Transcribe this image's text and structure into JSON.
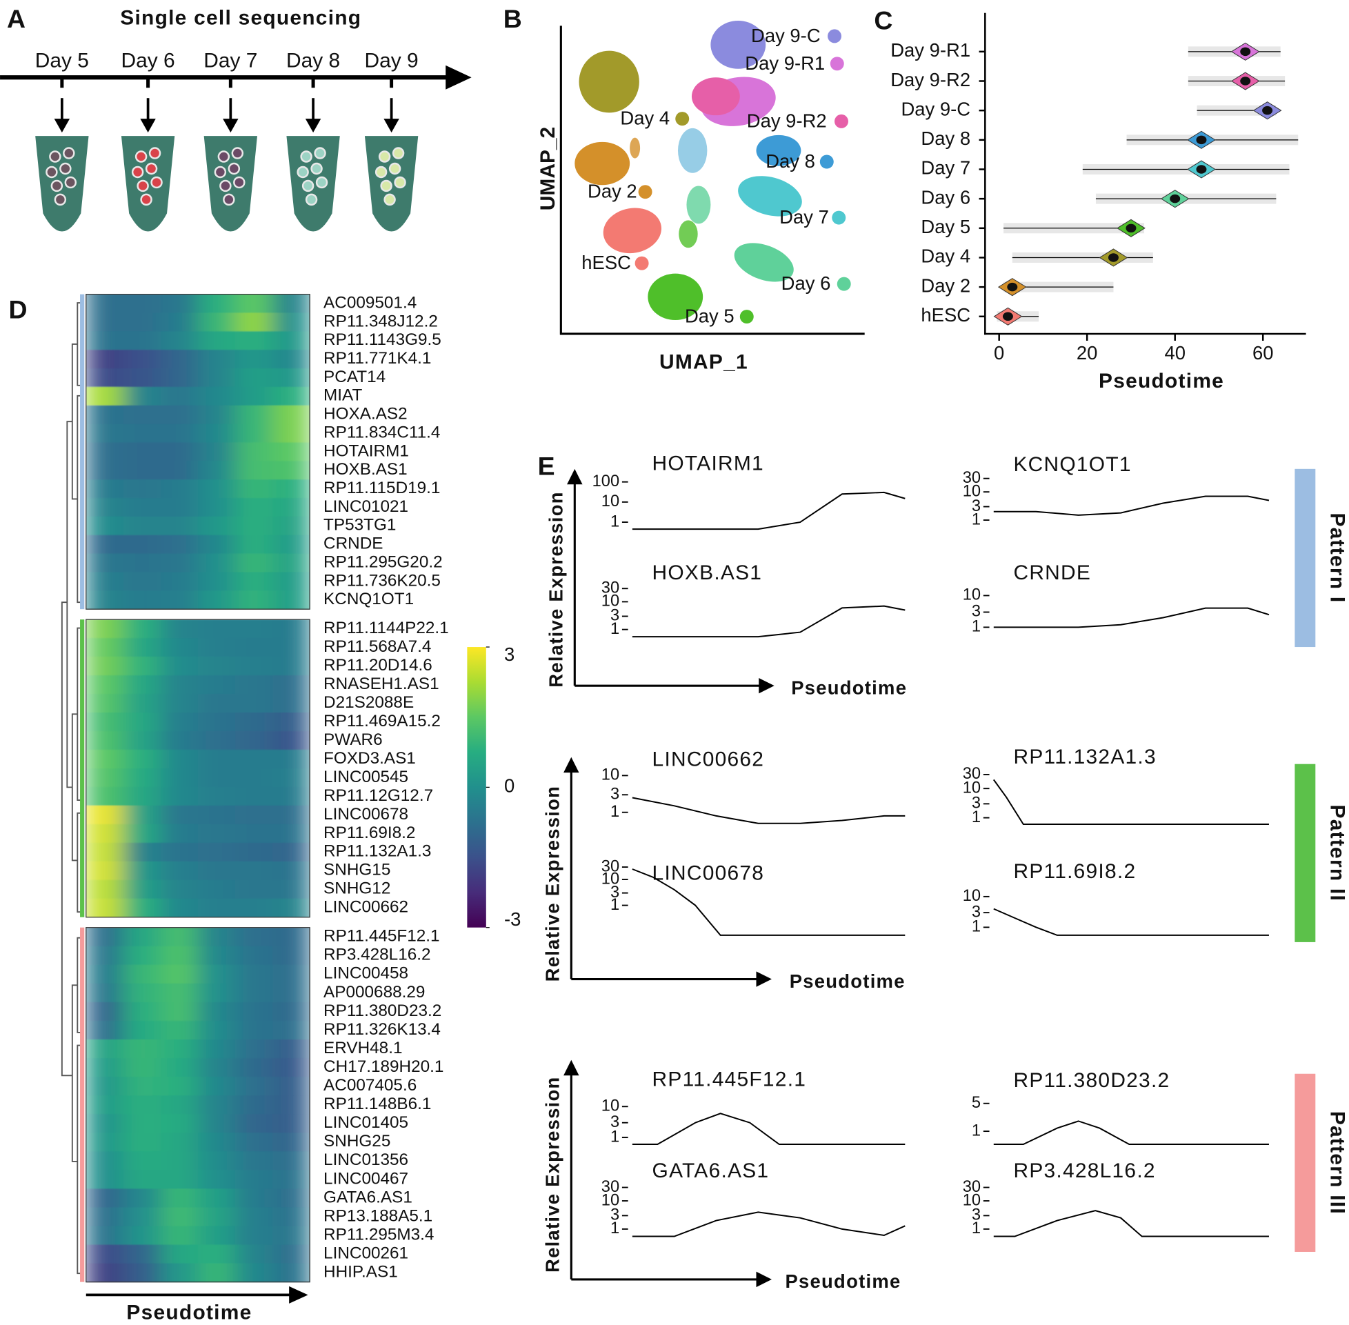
{
  "letters": [
    "A",
    "B",
    "C",
    "D",
    "E"
  ],
  "panel_a": {
    "title": "Single cell sequencing",
    "days": [
      "Day 5",
      "Day 6",
      "Day 7",
      "Day 8",
      "Day 9"
    ]
  },
  "panel_b": {
    "x_label": "UMAP_1",
    "y_label": "UMAP_2",
    "clusters": [
      {
        "label": "Day 9-C",
        "color": "#8b8bde"
      },
      {
        "label": "Day 9-R1",
        "color": "#d874d9"
      },
      {
        "label": "Day 4",
        "color": "#a29a2a"
      },
      {
        "label": "Day 9-R2",
        "color": "#e65fa8"
      },
      {
        "label": "Day 8",
        "color": "#3d9bd6"
      },
      {
        "label": "Day 2",
        "color": "#d4902a"
      },
      {
        "label": "Day 7",
        "color": "#4fc8cf"
      },
      {
        "label": "hESC",
        "color": "#f37a72"
      },
      {
        "label": "Day 6",
        "color": "#5fd19a"
      },
      {
        "label": "Day 5",
        "color": "#4fbf2a"
      }
    ]
  },
  "panel_e": {
    "groups": [
      {
        "y_label": "Relative Expression",
        "x_label": "Pseudotime",
        "pattern": "Pattern I",
        "color": "#9cbde2"
      },
      {
        "y_label": "Relative Expression",
        "x_label": "Pseudotime",
        "pattern": "Pattern II",
        "color": "#5cc14a"
      },
      {
        "y_label": "Relative Expression",
        "x_label": "Pseudotime",
        "pattern": "Pattern III",
        "color": "#f59b9b"
      }
    ]
  },
  "chart_data": [
    {
      "type": "violin",
      "x_label": "Pseudotime",
      "categories": [
        "Day 9-R1",
        "Day 9-R2",
        "Day 9-C",
        "Day 8",
        "Day 7",
        "Day 6",
        "Day 5",
        "Day 4",
        "Day 2",
        "hESC"
      ],
      "colors": [
        "#d874d9",
        "#e65fa8",
        "#8b8bde",
        "#3d9bd6",
        "#4fc8cf",
        "#5fd19a",
        "#4fbf2a",
        "#a29a2a",
        "#d4902a",
        "#f37a72"
      ],
      "min": [
        43,
        43,
        45,
        29,
        19,
        22,
        1,
        3,
        1,
        -0.5
      ],
      "median": [
        56,
        56,
        61,
        46,
        46,
        40,
        30,
        26,
        3,
        2
      ],
      "max": [
        64,
        65,
        63,
        68,
        66,
        63,
        33,
        35,
        26,
        9
      ],
      "xlim": [
        -3,
        69
      ],
      "xticks": [
        0,
        20,
        40,
        60
      ]
    },
    {
      "type": "heatmap",
      "x_label": "Pseudotime",
      "clim": [
        -3,
        3
      ],
      "cticks": [
        3,
        0,
        -3
      ],
      "groups": [
        {
          "color": "#9cbde2",
          "rows": [
            "AC009501.4",
            "RP11.348J12.2",
            "RP11.1143G9.5",
            "RP11.771K4.1",
            "PCAT14",
            "MIAT",
            "HOXA.AS2",
            "RP11.834C11.4",
            "HOTAIRM1",
            "HOXB.AS1",
            "RP11.115D19.1",
            "LINC01021",
            "TP53TG1",
            "CRNDE",
            "RP11.295G20.2",
            "RP11.736K20.5",
            "KCNQ1OT1"
          ],
          "values": [
            [
              -0.8,
              -0.8,
              -0.6,
              0.8,
              1.5,
              -0.3
            ],
            [
              -0.8,
              -0.8,
              -0.5,
              1,
              2,
              0
            ],
            [
              -0.7,
              -0.7,
              -0.3,
              0.6,
              0.8,
              0.2
            ],
            [
              -1.8,
              -1.5,
              -1,
              -0.3,
              0.2,
              -0.2
            ],
            [
              -1.6,
              -1.4,
              -1,
              -0.3,
              0.4,
              0.2
            ],
            [
              2.2,
              -0.3,
              -0.6,
              -0.2,
              0.3,
              0.8
            ],
            [
              -0.7,
              -0.8,
              -0.8,
              -0.3,
              1,
              1.8
            ],
            [
              -0.6,
              -0.7,
              -0.7,
              -0.2,
              1,
              1.8
            ],
            [
              -0.8,
              -0.9,
              -0.9,
              -0.3,
              1.2,
              1.5
            ],
            [
              -0.8,
              -0.9,
              -0.9,
              -0.2,
              1.2,
              1.3
            ],
            [
              -0.5,
              -0.6,
              -0.5,
              0,
              1,
              0.8
            ],
            [
              -0.3,
              -0.5,
              -0.5,
              0,
              0.8,
              0.6
            ],
            [
              -0.1,
              -0.3,
              -0.3,
              0.2,
              0.8,
              0.5
            ],
            [
              -0.9,
              -0.9,
              -0.8,
              -0.2,
              0.8,
              0.3
            ],
            [
              -0.6,
              -0.7,
              -0.6,
              0,
              1,
              0.5
            ],
            [
              -0.4,
              -0.6,
              -0.5,
              0,
              0.8,
              0.3
            ],
            [
              -0.3,
              -0.5,
              -0.4,
              0.2,
              0.9,
              0.4
            ]
          ]
        },
        {
          "color": "#5cc14a",
          "rows": [
            "RP11.1144P22.1",
            "RP11.568A7.4",
            "RP11.20D14.6",
            "RNASEH1.AS1",
            "D21S2088E",
            "RP11.469A15.2",
            "PWAR6",
            "FOXD3.AS1",
            "LINC00545",
            "RP11.12G12.7",
            "LINC00678",
            "RP11.69I8.2",
            "RP11.132A1.3",
            "SNHG15",
            "SNHG12",
            "LINC00662"
          ],
          "values": [
            [
              1.8,
              0.8,
              -0.3,
              -0.4,
              -0.4,
              -0.5
            ],
            [
              1.6,
              0.6,
              -0.2,
              -0.4,
              -0.5,
              -0.5
            ],
            [
              1.7,
              0.9,
              -0.1,
              -0.3,
              -0.4,
              -0.5
            ],
            [
              1.5,
              0.6,
              -0.3,
              -0.5,
              -0.6,
              -0.8
            ],
            [
              1.4,
              0.5,
              -0.3,
              -0.6,
              -0.6,
              -0.8
            ],
            [
              1.2,
              0.6,
              -0.4,
              -0.7,
              -0.9,
              -1.2
            ],
            [
              1.3,
              0.5,
              -0.5,
              -0.8,
              -1,
              -1.4
            ],
            [
              1.5,
              0.8,
              -0.2,
              -0.5,
              -0.5,
              -0.5
            ],
            [
              1.4,
              0.7,
              -0.2,
              -0.5,
              -0.5,
              -0.4
            ],
            [
              1.3,
              0.6,
              -0.2,
              -0.4,
              -0.5,
              -0.5
            ],
            [
              2.8,
              0.5,
              -0.6,
              -0.7,
              -0.8,
              -0.8
            ],
            [
              2.6,
              0.6,
              -0.5,
              -0.6,
              -0.7,
              -0.7
            ],
            [
              2.5,
              -0.3,
              -0.7,
              -0.8,
              -0.9,
              -1
            ],
            [
              2.6,
              0.2,
              -0.4,
              -0.6,
              -0.6,
              -0.7
            ],
            [
              2.4,
              0.4,
              -0.3,
              -0.5,
              -0.6,
              -0.6
            ],
            [
              2.5,
              0.8,
              -0.2,
              -0.4,
              -0.4,
              -0.3
            ]
          ]
        },
        {
          "color": "#f59b9b",
          "rows": [
            "RP11.445F12.1",
            "RP3.428L16.2",
            "LINC00458",
            "AP000688.29",
            "RP11.380D23.2",
            "RP11.326K13.4",
            "ERVH48.1",
            "CH17.189H20.1",
            "AC007405.6",
            "RP11.148B6.1",
            "LINC01405",
            "SNHG25",
            "LINC01356",
            "LINC00467",
            "GATA6.AS1",
            "RP13.188A5.1",
            "RP11.295M3.4",
            "LINC00261",
            "HHIP.AS1"
          ],
          "values": [
            [
              -0.8,
              0.6,
              1.2,
              -0.3,
              -0.8,
              -0.9
            ],
            [
              -0.6,
              0.8,
              1.3,
              -0.2,
              -0.7,
              -0.9
            ],
            [
              -0.5,
              1,
              1.4,
              0,
              -0.6,
              -0.8
            ],
            [
              -0.6,
              0.9,
              1.2,
              0,
              -0.6,
              -0.8
            ],
            [
              -1,
              0.8,
              1.2,
              -0.2,
              -0.7,
              -0.9
            ],
            [
              -0.8,
              0.7,
              1,
              -0.1,
              -0.7,
              -0.8
            ],
            [
              0.5,
              1,
              0.8,
              -0.2,
              -0.8,
              -1.2
            ],
            [
              0.3,
              1,
              0.7,
              -0.3,
              -0.9,
              -1.3
            ],
            [
              0.2,
              0.9,
              0.8,
              -0.2,
              -0.8,
              -1.2
            ],
            [
              0.3,
              0.8,
              0.6,
              -0.3,
              -0.9,
              -1.2
            ],
            [
              0.1,
              0.8,
              0.7,
              -0.3,
              -1,
              -1.2
            ],
            [
              0.2,
              0.8,
              0.6,
              -0.2,
              -0.8,
              -1
            ],
            [
              0,
              0.7,
              0.6,
              -0.1,
              -0.6,
              -0.8
            ],
            [
              0,
              0.6,
              0.6,
              0,
              -0.5,
              -0.7
            ],
            [
              -1,
              -0.2,
              1,
              0.4,
              -0.5,
              -0.8
            ],
            [
              -0.8,
              0,
              1.1,
              0.5,
              -0.4,
              -0.7
            ],
            [
              -0.7,
              0.1,
              1,
              0.4,
              -0.4,
              -0.6
            ],
            [
              -1.6,
              -1,
              0.6,
              0.8,
              -0.3,
              -0.8
            ],
            [
              -1.8,
              -1.2,
              0.2,
              1,
              -0.2,
              -0.7
            ]
          ]
        }
      ]
    },
    {
      "type": "line",
      "title": "HOTAIRM1",
      "x": [
        0,
        10,
        20,
        30,
        40,
        50,
        60,
        65
      ],
      "values": [
        0.45,
        0.45,
        0.45,
        0.45,
        1,
        25,
        30,
        15
      ],
      "xlim": [
        0,
        65
      ],
      "ylim": [
        0.45,
        150
      ],
      "yticks": [
        1,
        10,
        100
      ],
      "log": true,
      "color": "#000000"
    },
    {
      "type": "line",
      "title": "KCNQ1OT1",
      "x": [
        0,
        10,
        20,
        30,
        40,
        50,
        60,
        65
      ],
      "values": [
        2,
        2,
        1.5,
        1.8,
        4,
        7,
        7,
        5
      ],
      "xlim": [
        0,
        65
      ],
      "ylim": [
        0.55,
        40
      ],
      "yticks": [
        1,
        3,
        10,
        30
      ],
      "log": true,
      "color": "#000000"
    },
    {
      "type": "line",
      "title": "HOXB.AS1",
      "x": [
        0,
        10,
        20,
        30,
        40,
        50,
        60,
        65
      ],
      "values": [
        0.55,
        0.55,
        0.55,
        0.55,
        0.8,
        6,
        7,
        5
      ],
      "xlim": [
        0,
        65
      ],
      "ylim": [
        0.55,
        40
      ],
      "yticks": [
        1,
        3,
        10,
        30
      ],
      "log": true,
      "color": "#000000"
    },
    {
      "type": "line",
      "title": "CRNDE",
      "x": [
        0,
        10,
        20,
        30,
        40,
        50,
        60,
        65
      ],
      "values": [
        1,
        1,
        1,
        1.2,
        2,
        4,
        4,
        2.5
      ],
      "xlim": [
        0,
        65
      ],
      "ylim": [
        0.57,
        13
      ],
      "yticks": [
        1,
        3,
        10
      ],
      "log": true,
      "color": "#000000"
    },
    {
      "type": "line",
      "title": "LINC00662",
      "x": [
        0,
        10,
        20,
        30,
        40,
        50,
        60,
        65
      ],
      "values": [
        2.5,
        1.5,
        0.8,
        0.5,
        0.5,
        0.6,
        0.8,
        0.8
      ],
      "xlim": [
        0,
        65
      ],
      "ylim": [
        0.5,
        12
      ],
      "yticks": [
        1,
        3,
        10
      ],
      "log": true,
      "color": "#000000"
    },
    {
      "type": "line",
      "title": "RP11.132A1.3",
      "x": [
        0,
        3,
        7,
        65
      ],
      "values": [
        20,
        5,
        0.6,
        0.6
      ],
      "xlim": [
        0,
        65
      ],
      "ylim": [
        0.6,
        40
      ],
      "yticks": [
        1,
        3,
        10,
        30
      ],
      "log": true,
      "color": "#000000"
    },
    {
      "type": "line",
      "title": "LINC00678",
      "x": [
        0,
        5,
        10,
        15,
        21,
        65
      ],
      "values": [
        25,
        12,
        4,
        1,
        0.07,
        0.07
      ],
      "xlim": [
        0,
        65
      ],
      "ylim": [
        0.07,
        40
      ],
      "yticks": [
        1,
        3,
        10,
        30
      ],
      "log": true,
      "color": "#000000"
    },
    {
      "type": "line",
      "title": "RP11.69I8.2",
      "x": [
        0,
        5,
        10,
        15,
        65
      ],
      "values": [
        4,
        2,
        1,
        0.55,
        0.55
      ],
      "xlim": [
        0,
        65
      ],
      "ylim": [
        0.55,
        13
      ],
      "yticks": [
        1,
        3,
        10
      ],
      "log": true,
      "color": "#000000"
    },
    {
      "type": "line",
      "title": "RP11.445F12.1",
      "x": [
        0,
        6,
        15,
        21,
        28,
        35,
        65
      ],
      "values": [
        0.6,
        0.6,
        3,
        6,
        3,
        0.6,
        0.6
      ],
      "xlim": [
        0,
        65
      ],
      "ylim": [
        0.6,
        13
      ],
      "yticks": [
        1,
        3,
        10
      ],
      "log": true,
      "color": "#000000"
    },
    {
      "type": "line",
      "title": "RP11.380D23.2",
      "x": [
        0,
        7,
        15,
        20,
        25,
        32,
        65
      ],
      "values": [
        0.47,
        0.47,
        1.2,
        1.8,
        1.2,
        0.47,
        0.47
      ],
      "xlim": [
        0,
        65
      ],
      "ylim": [
        0.47,
        8
      ],
      "yticks": [
        1,
        5
      ],
      "log": true,
      "color": "#000000"
    },
    {
      "type": "line",
      "title": "GATA6.AS1",
      "x": [
        0,
        10,
        20,
        30,
        40,
        50,
        60,
        65
      ],
      "values": [
        0.55,
        0.55,
        2,
        4,
        2.5,
        1,
        0.6,
        1.3
      ],
      "xlim": [
        0,
        65
      ],
      "ylim": [
        0.55,
        40
      ],
      "yticks": [
        1,
        3,
        10,
        30
      ],
      "log": true,
      "color": "#000000"
    },
    {
      "type": "line",
      "title": "RP3.428L16.2",
      "x": [
        0,
        5,
        15,
        24,
        30,
        35,
        65
      ],
      "values": [
        0.55,
        0.55,
        2,
        4.5,
        2.5,
        0.55,
        0.55
      ],
      "xlim": [
        0,
        65
      ],
      "ylim": [
        0.55,
        40
      ],
      "yticks": [
        1,
        3,
        10,
        30
      ],
      "log": true,
      "color": "#000000"
    }
  ]
}
